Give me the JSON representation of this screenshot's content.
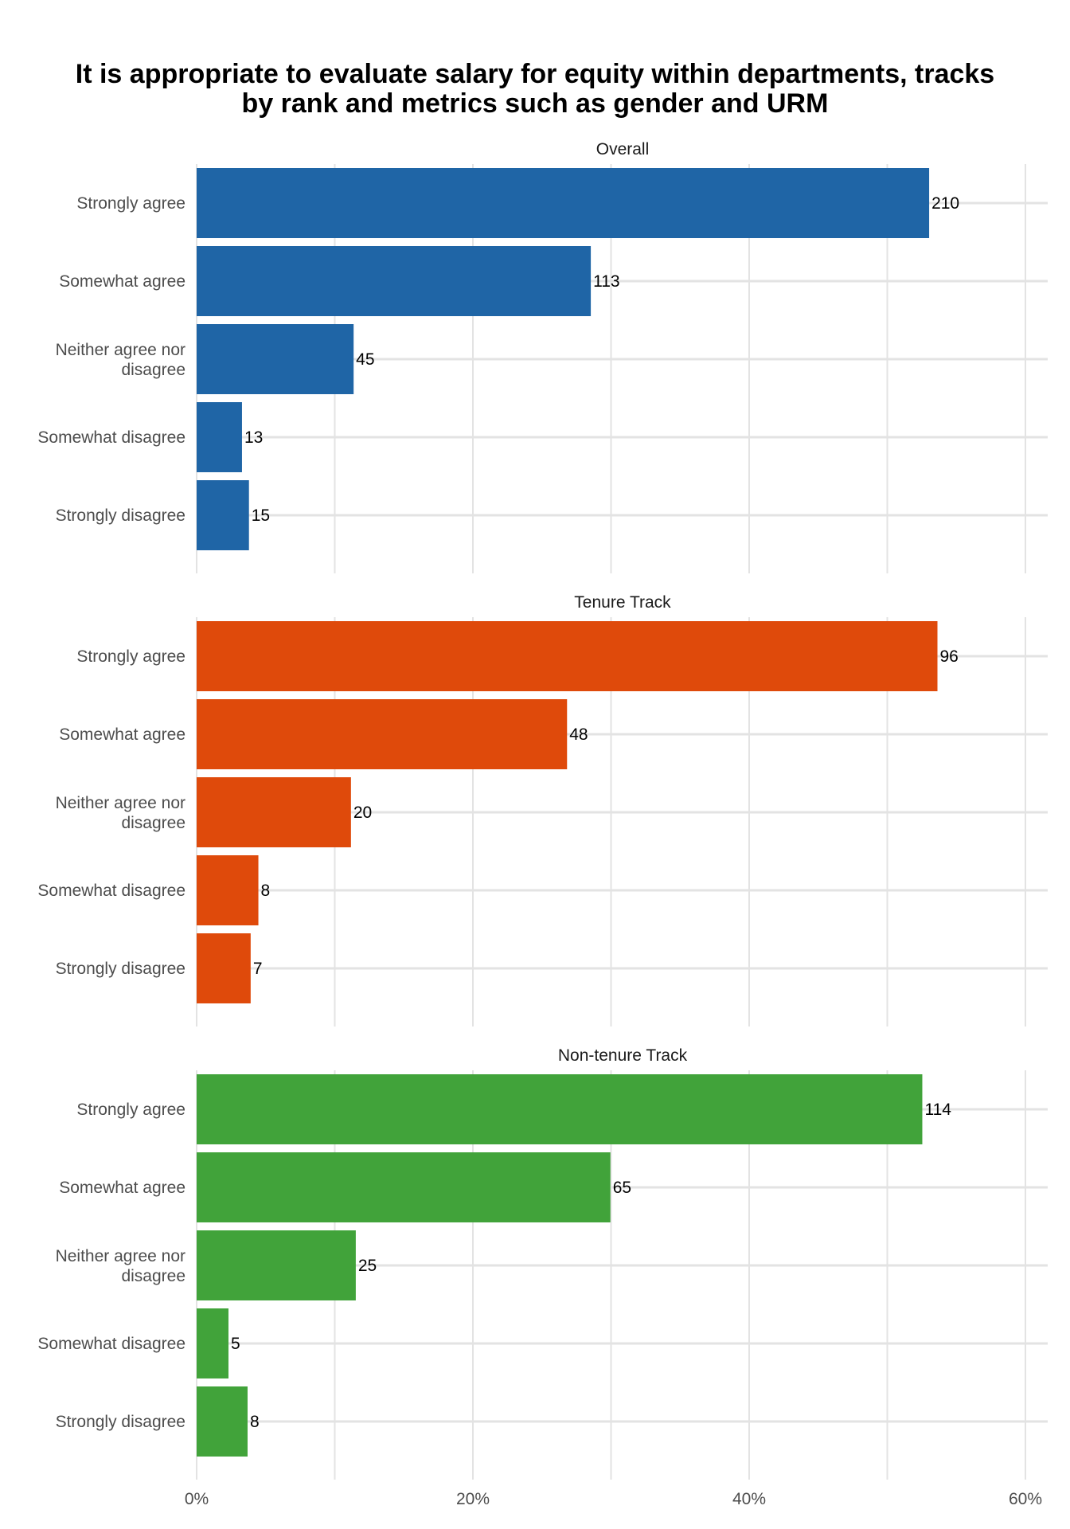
{
  "chart_data": {
    "type": "bar",
    "orientation": "horizontal",
    "title": [
      "It is appropriate to evaluate salary for equity within departments, tracks",
      "by rank and metrics such as gender and URM"
    ],
    "categories": [
      "Strongly agree",
      "Somewhat agree",
      "Neither agree nor disagree",
      "Somewhat disagree",
      "Strongly disagree"
    ],
    "category_lines": [
      [
        "Strongly agree"
      ],
      [
        "Somewhat agree"
      ],
      [
        "Neither agree nor",
        "disagree"
      ],
      [
        "Somewhat disagree"
      ],
      [
        "Strongly disagree"
      ]
    ],
    "x_axis": {
      "ticks": [
        0,
        20,
        40,
        60
      ],
      "tick_labels": [
        "0%",
        "20%",
        "40%",
        "60%"
      ],
      "xlim": [
        0,
        61.7
      ],
      "minor_ticks": [
        10,
        30,
        50
      ]
    },
    "grid": true,
    "facets": [
      {
        "name": "Overall",
        "color": "#1f65a6",
        "counts": [
          210,
          113,
          45,
          13,
          15
        ],
        "counts_labels": [
          "210",
          "113",
          "45",
          "13",
          "15"
        ]
      },
      {
        "name": "Tenure Track",
        "color": "#df4a0b",
        "counts": [
          96,
          48,
          20,
          8,
          7
        ],
        "counts_labels": [
          "96",
          "48",
          "20",
          "8",
          "7"
        ]
      },
      {
        "name": "Non-tenure Track",
        "color": "#41a33a",
        "counts": [
          114,
          65,
          25,
          5,
          8
        ],
        "counts_labels": [
          "114",
          "65",
          "25",
          "5",
          "8"
        ]
      }
    ]
  }
}
